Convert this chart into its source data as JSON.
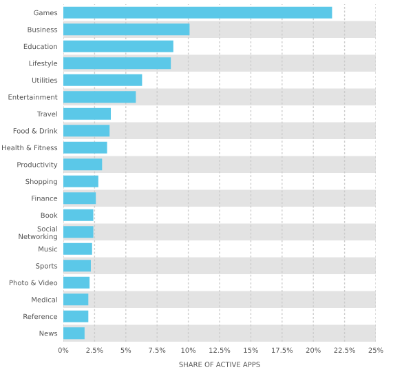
{
  "chart_data": {
    "type": "bar",
    "orientation": "horizontal",
    "xlabel": "SHARE OF ACTIVE APPS",
    "categories": [
      "Games",
      "Business",
      "Education",
      "Lifestyle",
      "Utilities",
      "Entertainment",
      "Travel",
      "Food & Drink",
      "Health & Fitness",
      "Productivity",
      "Shopping",
      "Finance",
      "Book",
      "Social\nNetworking",
      "Music",
      "Sports",
      "Photo & Video",
      "Medical",
      "Reference",
      "News"
    ],
    "values": [
      21.5,
      10.1,
      8.8,
      8.6,
      6.3,
      5.8,
      3.8,
      3.7,
      3.5,
      3.1,
      2.8,
      2.6,
      2.4,
      2.4,
      2.3,
      2.2,
      2.1,
      2.0,
      2.0,
      1.7
    ],
    "color": "#5bc8e8",
    "xlim": [
      0,
      25
    ],
    "xticks": [
      {
        "value": 0,
        "label": "0%"
      },
      {
        "value": 2.5,
        "label": "2.5%"
      },
      {
        "value": 5,
        "label": "5%"
      },
      {
        "value": 7.5,
        "label": "7.5%"
      },
      {
        "value": 10,
        "label": "10%"
      },
      {
        "value": 12.5,
        "label": "12.5%"
      },
      {
        "value": 15,
        "label": "15%"
      },
      {
        "value": 17.5,
        "label": "17.5%"
      },
      {
        "value": 20,
        "label": "20%"
      },
      {
        "value": 22.5,
        "label": "22.5%"
      },
      {
        "value": 25,
        "label": "25%"
      }
    ],
    "grid": "x",
    "legend": false
  }
}
